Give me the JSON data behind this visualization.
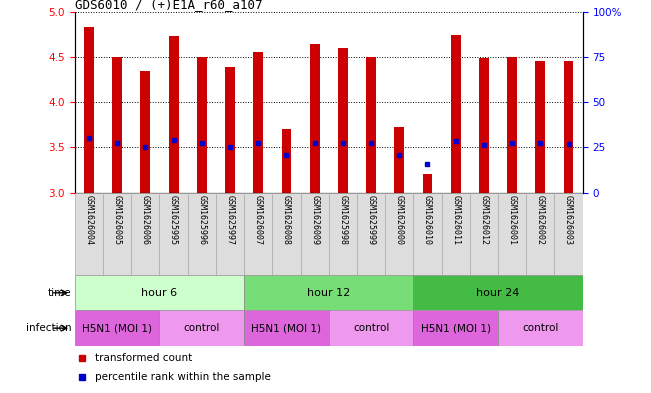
{
  "title": "GDS6010 / (+)E1A_r60_a107",
  "samples": [
    "GSM1626004",
    "GSM1626005",
    "GSM1626006",
    "GSM1625995",
    "GSM1625996",
    "GSM1625997",
    "GSM1626007",
    "GSM1626008",
    "GSM1626009",
    "GSM1625998",
    "GSM1625999",
    "GSM1626000",
    "GSM1626010",
    "GSM1626011",
    "GSM1626012",
    "GSM1626001",
    "GSM1626002",
    "GSM1626003"
  ],
  "bar_values": [
    4.83,
    4.5,
    4.35,
    4.73,
    4.5,
    4.39,
    4.55,
    3.7,
    4.64,
    4.6,
    4.5,
    3.73,
    3.21,
    4.74,
    4.49,
    4.5,
    4.46,
    4.46
  ],
  "percentile_values": [
    3.6,
    3.55,
    3.5,
    3.58,
    3.55,
    3.5,
    3.55,
    3.42,
    3.55,
    3.55,
    3.55,
    3.42,
    3.32,
    3.57,
    3.53,
    3.55,
    3.55,
    3.54
  ],
  "bar_color": "#cc0000",
  "percentile_color": "#0000cc",
  "ymin": 3.0,
  "ymax": 5.0,
  "yticks": [
    3.0,
    3.5,
    4.0,
    4.5,
    5.0
  ],
  "right_yticks": [
    0,
    25,
    50,
    75,
    100
  ],
  "right_ytick_labels": [
    "0",
    "25",
    "50",
    "75",
    "100%"
  ],
  "groups": [
    {
      "label": "hour 6",
      "start": 0,
      "end": 5,
      "color": "#ccffcc"
    },
    {
      "label": "hour 12",
      "start": 6,
      "end": 11,
      "color": "#77dd77"
    },
    {
      "label": "hour 24",
      "start": 12,
      "end": 17,
      "color": "#44bb44"
    }
  ],
  "infection_groups": [
    {
      "label": "H5N1 (MOI 1)",
      "start": 0,
      "end": 2,
      "color": "#dd66dd"
    },
    {
      "label": "control",
      "start": 3,
      "end": 5,
      "color": "#ee99ee"
    },
    {
      "label": "H5N1 (MOI 1)",
      "start": 6,
      "end": 8,
      "color": "#dd66dd"
    },
    {
      "label": "control",
      "start": 9,
      "end": 11,
      "color": "#ee99ee"
    },
    {
      "label": "H5N1 (MOI 1)",
      "start": 12,
      "end": 14,
      "color": "#dd66dd"
    },
    {
      "label": "control",
      "start": 15,
      "end": 17,
      "color": "#ee99ee"
    }
  ]
}
